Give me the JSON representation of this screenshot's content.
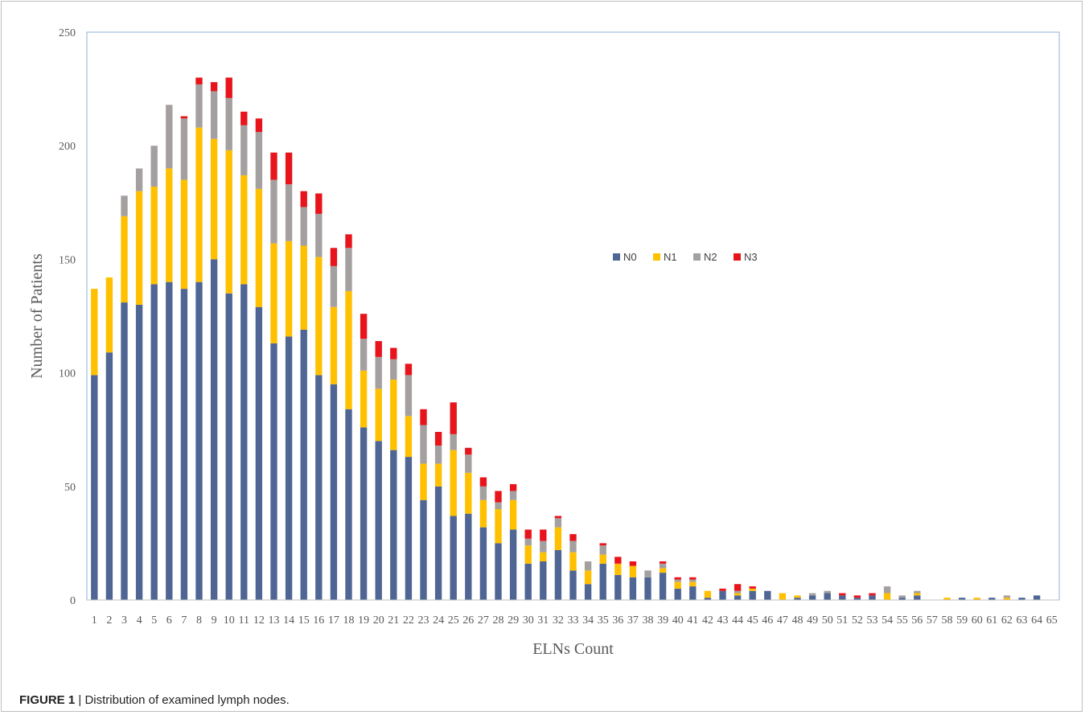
{
  "caption": {
    "figure_label": "FIGURE 1",
    "separator": "|",
    "text": "Distribution of examined lymph nodes."
  },
  "chart_data": {
    "type": "bar",
    "stacked": true,
    "title": "",
    "xlabel": "ELNs Count",
    "ylabel": "Number of Patients",
    "ylim": [
      0,
      250
    ],
    "yticks": [
      0,
      50,
      100,
      150,
      200,
      250
    ],
    "grid": false,
    "legend_position": "center-right",
    "colors": {
      "N0": "#4f6694",
      "N1": "#ffc000",
      "N2": "#a5a0a0",
      "N3": "#e8141c"
    },
    "categories": [
      "1",
      "2",
      "3",
      "4",
      "5",
      "6",
      "7",
      "8",
      "9",
      "10",
      "11",
      "12",
      "13",
      "14",
      "15",
      "16",
      "17",
      "18",
      "19",
      "20",
      "21",
      "22",
      "23",
      "24",
      "25",
      "26",
      "27",
      "28",
      "29",
      "30",
      "31",
      "32",
      "33",
      "34",
      "35",
      "36",
      "37",
      "38",
      "39",
      "40",
      "41",
      "42",
      "43",
      "44",
      "45",
      "46",
      "47",
      "48",
      "49",
      "50",
      "51",
      "52",
      "53",
      "54",
      "55",
      "56",
      "57",
      "58",
      "59",
      "60",
      "61",
      "62",
      "63",
      "64",
      "65"
    ],
    "series": [
      {
        "name": "N0",
        "values": [
          99,
          109,
          131,
          130,
          139,
          140,
          137,
          140,
          150,
          135,
          139,
          129,
          113,
          116,
          119,
          99,
          95,
          84,
          76,
          70,
          66,
          63,
          44,
          50,
          37,
          38,
          32,
          25,
          31,
          16,
          17,
          22,
          13,
          7,
          16,
          11,
          10,
          10,
          12,
          5,
          6,
          1,
          4,
          2,
          4,
          4,
          0,
          1,
          2,
          3,
          2,
          1,
          2,
          0,
          1,
          2,
          0,
          0,
          1,
          0,
          1,
          0,
          1,
          2,
          0
        ]
      },
      {
        "name": "N1",
        "values": [
          38,
          33,
          38,
          50,
          43,
          50,
          48,
          68,
          53,
          63,
          48,
          52,
          44,
          42,
          37,
          52,
          34,
          52,
          25,
          23,
          31,
          18,
          16,
          10,
          29,
          18,
          12,
          15,
          13,
          8,
          4,
          10,
          8,
          6,
          4,
          5,
          5,
          0,
          2,
          3,
          2,
          3,
          0,
          1,
          1,
          0,
          3,
          1,
          0,
          0,
          0,
          0,
          0,
          3,
          0,
          1,
          0,
          1,
          0,
          1,
          0,
          1,
          0,
          0,
          0
        ]
      },
      {
        "name": "N2",
        "values": [
          0,
          0,
          9,
          10,
          18,
          28,
          27,
          19,
          21,
          23,
          22,
          25,
          28,
          25,
          17,
          19,
          18,
          19,
          14,
          14,
          9,
          18,
          17,
          8,
          7,
          8,
          6,
          3,
          4,
          3,
          5,
          4,
          5,
          4,
          4,
          0,
          0,
          3,
          2,
          1,
          1,
          0,
          0,
          1,
          0,
          0,
          0,
          0,
          1,
          1,
          0,
          0,
          0,
          3,
          1,
          1,
          0,
          0,
          0,
          0,
          0,
          1,
          0,
          0,
          0
        ]
      },
      {
        "name": "N3",
        "values": [
          0,
          0,
          0,
          0,
          0,
          0,
          1,
          3,
          4,
          9,
          6,
          6,
          12,
          14,
          7,
          9,
          8,
          6,
          11,
          7,
          5,
          5,
          7,
          6,
          14,
          3,
          4,
          5,
          3,
          4,
          5,
          1,
          3,
          0,
          1,
          3,
          2,
          0,
          1,
          1,
          1,
          0,
          1,
          3,
          1,
          0,
          0,
          0,
          0,
          0,
          1,
          1,
          1,
          0,
          0,
          0,
          0,
          0,
          0,
          0,
          0,
          0,
          0,
          0,
          0
        ]
      }
    ]
  }
}
